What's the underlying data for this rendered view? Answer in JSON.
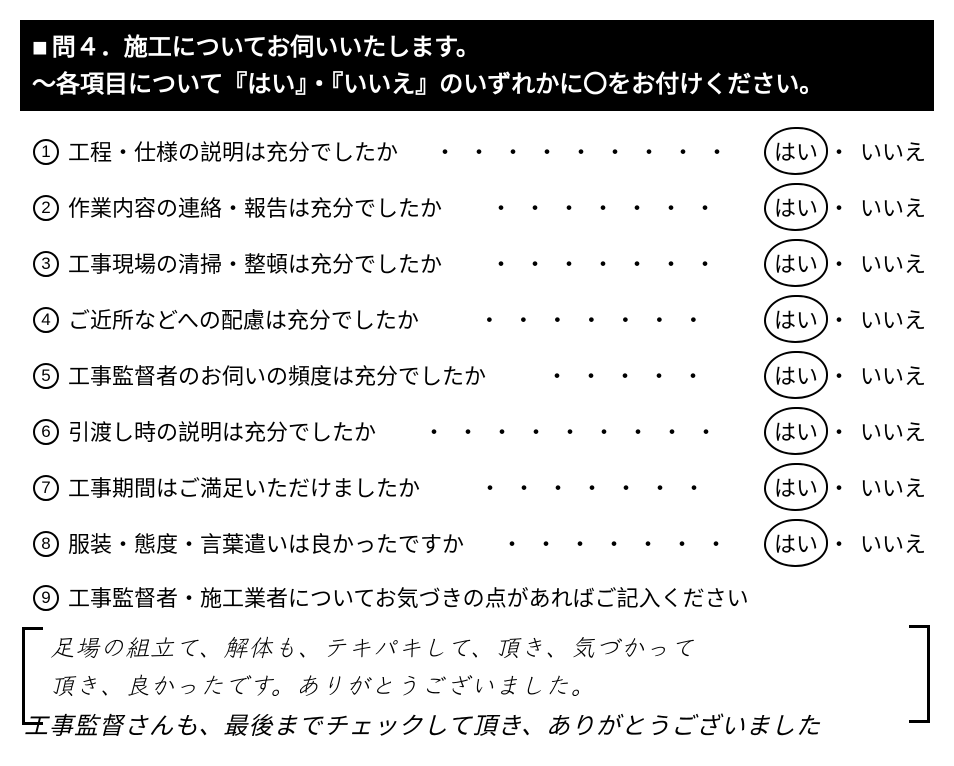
{
  "header": {
    "line1_prefix": "問４．",
    "line1_text": "施工についてお伺いいたします。",
    "line2": "～各項目について『はい』・『いいえ』のいずれかに〇をお付けください。"
  },
  "answer_labels": {
    "yes": "はい",
    "no": "いいえ",
    "sep": "・"
  },
  "questions": [
    {
      "num": "1",
      "text": "工程・仕様の説明は充分でしたか",
      "selected": "yes"
    },
    {
      "num": "2",
      "text": "作業内容の連絡・報告は充分でしたか",
      "selected": "yes"
    },
    {
      "num": "3",
      "text": "工事現場の清掃・整頓は充分でしたか",
      "selected": "yes"
    },
    {
      "num": "4",
      "text": "ご近所などへの配慮は充分でしたか",
      "selected": "yes"
    },
    {
      "num": "5",
      "text": "工事監督者のお伺いの頻度は充分でしたか",
      "selected": "yes"
    },
    {
      "num": "6",
      "text": "引渡し時の説明は充分でしたか",
      "selected": "yes"
    },
    {
      "num": "7",
      "text": "工事期間はご満足いただけましたか",
      "selected": "yes"
    },
    {
      "num": "8",
      "text": "服装・態度・言葉遣いは良かったですか",
      "selected": "yes"
    }
  ],
  "question9": {
    "num": "9",
    "text": "工事監督者・施工業者についてお気づきの点があればご記入ください"
  },
  "handwritten": {
    "line1": "足場の組立て、解体も、テキパキして、頂き、気づかって",
    "line2": "頂き、良かったです。ありがとうございました。",
    "line3": "工事監督さんも、最後までチェックして頂き、ありがとうございました"
  },
  "style": {
    "header_bg": "#000000",
    "header_fg": "#ffffff",
    "page_bg": "#ffffff",
    "text_color": "#000000",
    "header_fontsize": 24,
    "body_fontsize": 22,
    "hand_fontsize": 24
  }
}
